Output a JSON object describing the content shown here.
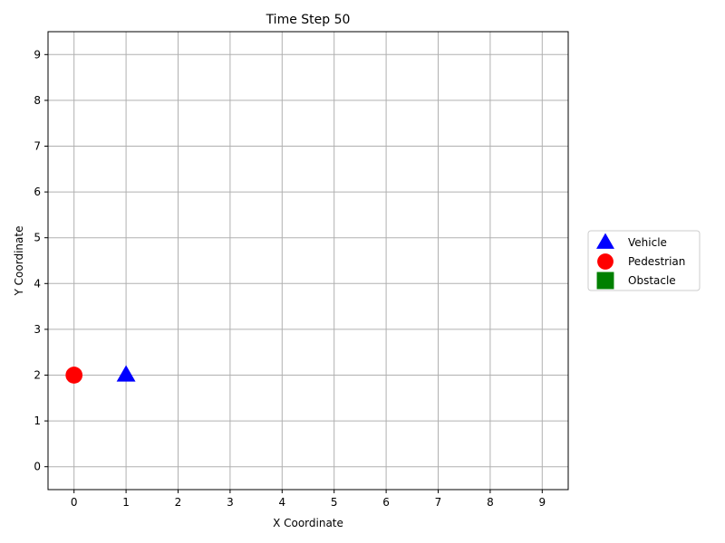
{
  "chart_data": {
    "type": "scatter",
    "title": "Time Step 50",
    "xlabel": "X Coordinate",
    "ylabel": "Y Coordinate",
    "xlim": [
      -0.5,
      9.5
    ],
    "ylim": [
      -0.5,
      9.5
    ],
    "x_ticks": [
      "0",
      "1",
      "2",
      "3",
      "4",
      "5",
      "6",
      "7",
      "8",
      "9"
    ],
    "y_ticks": [
      "0",
      "1",
      "2",
      "3",
      "4",
      "5",
      "6",
      "7",
      "8",
      "9"
    ],
    "grid": true,
    "legend_position": "right",
    "series": [
      {
        "name": "Vehicle",
        "marker": "triangle",
        "color": "#0000ff",
        "points": [
          {
            "x": 1,
            "y": 2
          }
        ]
      },
      {
        "name": "Pedestrian",
        "marker": "circle",
        "color": "#ff0000",
        "points": [
          {
            "x": 0,
            "y": 2
          }
        ]
      },
      {
        "name": "Obstacle",
        "marker": "square",
        "color": "#008000",
        "points": []
      }
    ]
  }
}
